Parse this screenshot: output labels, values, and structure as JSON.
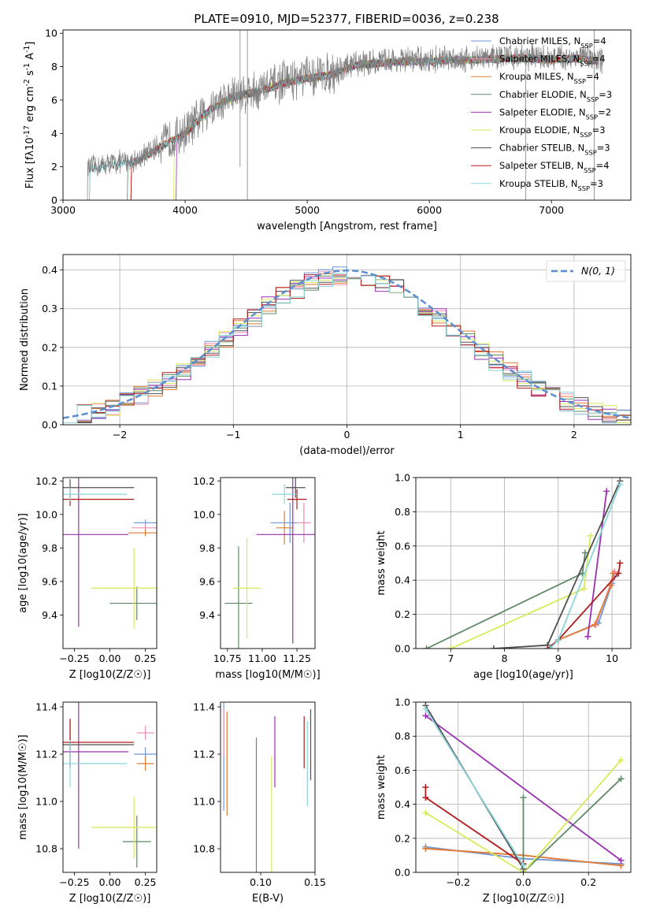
{
  "figure": {
    "title": "PLATE=0910, MJD=52377, FIBERID=0036, z=0.238"
  },
  "series_colors": [
    "#6f98d6",
    "#f08fb0",
    "#e07b33",
    "#5f8a67",
    "#9a2fb0",
    "#d8ea5a",
    "#505050",
    "#b01c1c",
    "#8cd6d9"
  ],
  "chart_data": [
    {
      "type": "line",
      "panel": "spectrum",
      "xlabel": "wavelength [Angstrom, rest frame]",
      "ylabel": "Flux [f_λ10^{-17} erg cm^{-2} s^{-1} A^{-1}]",
      "xlim": [
        3000,
        7650
      ],
      "ylim": [
        0,
        10.2
      ],
      "xticks": [
        3000,
        4000,
        5000,
        6000,
        7000
      ],
      "yticks": [
        0,
        2,
        4,
        6,
        8,
        10
      ],
      "legend": [
        "Chabrier MILES, N_SSP=4",
        "Salpeter MILES, N_SSP=4",
        "Kroupa MILES, N_SSP=4",
        "Chabrier ELODIE, N_SSP=3",
        "Salpeter ELODIE, N_SSP=2",
        "Kroupa ELODIE, N_SSP=3",
        "Chabrier STELIB, N_SSP=3",
        "Salpeter STELIB, N_SSP=4",
        "Kroupa STELIB, N_SSP=3"
      ],
      "legend_loc": "right",
      "data_envelope": {
        "x": [
          3200,
          3400,
          3600,
          3800,
          4000,
          4200,
          4400,
          4600,
          4800,
          5000,
          5200,
          5400,
          5600,
          5800,
          6000,
          6200,
          6400,
          6600,
          6800,
          7000,
          7200,
          7400
        ],
        "y": [
          1.9,
          2.2,
          2.4,
          3.3,
          4.1,
          5.5,
          6.3,
          6.6,
          7.1,
          7.4,
          7.6,
          8.2,
          8.3,
          8.4,
          8.4,
          8.5,
          8.5,
          8.6,
          8.6,
          8.5,
          8.6,
          8.4
        ]
      }
    },
    {
      "type": "line",
      "panel": "residual_hist",
      "xlabel": "(data-model)/error",
      "ylabel": "Normed distribution",
      "xlim": [
        -2.5,
        2.5
      ],
      "ylim": [
        0,
        0.44
      ],
      "xticks": [
        -2,
        -1,
        0,
        1,
        2
      ],
      "yticks": [
        0.0,
        0.1,
        0.2,
        0.3,
        0.4
      ],
      "legend": [
        "N(0, 1)"
      ],
      "legend_loc": "upper right",
      "grid": true
    },
    {
      "type": "scatter",
      "panel": "age_vs_Z",
      "xlabel": "Z [log10(Z/Z☉)]",
      "ylabel": "age [log10(age/yr)]",
      "xlim": [
        -0.33,
        0.33
      ],
      "ylim": [
        9.2,
        10.22
      ],
      "xticks": [
        -0.25,
        0.0,
        0.25
      ],
      "yticks": [
        9.4,
        9.6,
        9.8,
        10.0,
        10.2
      ],
      "points": [
        {
          "x": 0.25,
          "y": 9.95,
          "xerr": 0.08,
          "yerr": 0.02
        },
        {
          "x": 0.25,
          "y": 9.92,
          "xerr": 0.1,
          "yerr": 0.02
        },
        {
          "x": 0.25,
          "y": 9.89,
          "xerr": 0.12,
          "yerr": 0.02
        },
        {
          "x": 0.19,
          "y": 9.47,
          "xerr": 0.19,
          "yerr": 0.1
        },
        {
          "x": -0.22,
          "y": 9.88,
          "xerr": 0.35,
          "yerr": 0.55
        },
        {
          "x": 0.17,
          "y": 9.56,
          "xerr": 0.3,
          "yerr": 0.24
        },
        {
          "x": -0.28,
          "y": 10.16,
          "xerr": 0.45,
          "yerr": 0.05
        },
        {
          "x": -0.28,
          "y": 10.09,
          "xerr": 0.45,
          "yerr": 0.04
        },
        {
          "x": -0.28,
          "y": 10.12,
          "xerr": 0.4,
          "yerr": 0.04
        }
      ]
    },
    {
      "type": "scatter",
      "panel": "age_vs_mass",
      "xlabel": "mass [log10(M/M☉)]",
      "ylabel": "",
      "xlim": [
        10.7,
        11.38
      ],
      "ylim": [
        9.2,
        10.22
      ],
      "xticks": [
        10.75,
        11.0,
        11.25
      ],
      "yticks": [
        9.4,
        9.6,
        9.8,
        10.0,
        10.2
      ],
      "points": [
        {
          "x": 11.2,
          "y": 9.95,
          "xerr": 0.14,
          "yerr": 0.12
        },
        {
          "x": 11.3,
          "y": 9.95,
          "xerr": 0.05,
          "yerr": 0.12
        },
        {
          "x": 11.16,
          "y": 9.92,
          "xerr": 0.06,
          "yerr": 0.1
        },
        {
          "x": 10.83,
          "y": 9.47,
          "xerr": 0.1,
          "yerr": 0.34
        },
        {
          "x": 11.22,
          "y": 9.88,
          "xerr": 0.26,
          "yerr": 0.65
        },
        {
          "x": 10.89,
          "y": 9.56,
          "xerr": 0.1,
          "yerr": 0.3
        },
        {
          "x": 11.24,
          "y": 10.16,
          "xerr": 0.07,
          "yerr": 0.06
        },
        {
          "x": 11.25,
          "y": 10.09,
          "xerr": 0.07,
          "yerr": 0.06
        },
        {
          "x": 11.16,
          "y": 10.12,
          "xerr": 0.09,
          "yerr": 0.06
        }
      ]
    },
    {
      "type": "line",
      "panel": "massweight_vs_age",
      "xlabel": "age [log10(age/yr)]",
      "ylabel": "mass weight",
      "xlim": [
        6.35,
        10.35
      ],
      "ylim": [
        0,
        1.0
      ],
      "xticks": [
        7,
        8,
        9,
        10
      ],
      "yticks": [
        0.0,
        0.2,
        0.4,
        0.6,
        0.8,
        1.0
      ],
      "grid": true,
      "series": [
        {
          "x": [
            9.0,
            9.75,
            10.0,
            10.05
          ],
          "y": [
            0.05,
            0.15,
            0.38,
            0.42
          ]
        },
        {
          "x": [
            9.0,
            9.7,
            10.0,
            10.05
          ],
          "y": [
            0.05,
            0.14,
            0.4,
            0.45
          ]
        },
        {
          "x": [
            9.0,
            9.68,
            9.98,
            10.02
          ],
          "y": [
            0.05,
            0.14,
            0.37,
            0.44
          ]
        },
        {
          "x": [
            6.55,
            9.45,
            9.5
          ],
          "y": [
            0.0,
            0.44,
            0.56
          ]
        },
        {
          "x": [
            9.55,
            9.9
          ],
          "y": [
            0.07,
            0.92
          ]
        },
        {
          "x": [
            7.0,
            9.48,
            9.6
          ],
          "y": [
            0.0,
            0.35,
            0.66
          ]
        },
        {
          "x": [
            7.8,
            8.8,
            10.15
          ],
          "y": [
            0.0,
            0.02,
            0.98
          ]
        },
        {
          "x": [
            8.8,
            9.0,
            10.12,
            10.15
          ],
          "y": [
            0.0,
            0.05,
            0.44,
            0.5
          ]
        },
        {
          "x": [
            8.85,
            9.0,
            10.15
          ],
          "y": [
            0.0,
            0.05,
            0.96
          ]
        }
      ]
    },
    {
      "type": "scatter",
      "panel": "mass_vs_Z",
      "xlabel": "Z [log10(Z/Z☉)]",
      "ylabel": "mass [log10(M/M☉)]",
      "xlim": [
        -0.33,
        0.33
      ],
      "ylim": [
        10.7,
        11.42
      ],
      "xticks": [
        -0.25,
        0.0,
        0.25
      ],
      "yticks": [
        10.8,
        11.0,
        11.2,
        11.4
      ],
      "points": [
        {
          "x": 0.25,
          "y": 11.2,
          "xerr": 0.08,
          "yerr": 0.03
        },
        {
          "x": 0.25,
          "y": 11.29,
          "xerr": 0.06,
          "yerr": 0.03
        },
        {
          "x": 0.25,
          "y": 11.16,
          "xerr": 0.06,
          "yerr": 0.03
        },
        {
          "x": 0.19,
          "y": 10.83,
          "xerr": 0.1,
          "yerr": 0.11
        },
        {
          "x": -0.22,
          "y": 11.21,
          "xerr": 0.35,
          "yerr": 0.41
        },
        {
          "x": 0.17,
          "y": 10.89,
          "xerr": 0.3,
          "yerr": 0.13
        },
        {
          "x": -0.28,
          "y": 11.24,
          "xerr": 0.45,
          "yerr": 0.1
        },
        {
          "x": -0.28,
          "y": 11.25,
          "xerr": 0.45,
          "yerr": 0.1
        },
        {
          "x": -0.28,
          "y": 11.16,
          "xerr": 0.4,
          "yerr": 0.1
        }
      ]
    },
    {
      "type": "scatter",
      "panel": "mass_vs_ebv",
      "xlabel": "E(B-V)",
      "ylabel": "",
      "xlim": [
        0.063,
        0.15
      ],
      "ylim": [
        10.7,
        11.42
      ],
      "xticks": [
        0.1,
        0.15
      ],
      "yticks": [
        10.8,
        11.0,
        11.2,
        11.4
      ],
      "points": [
        {
          "x": 0.066,
          "y": 11.2,
          "yerr": 0.24
        },
        {
          "x": 0.066,
          "y": 11.29,
          "yerr": 0.1
        },
        {
          "x": 0.069,
          "y": 11.16,
          "yerr": 0.22
        },
        {
          "x": 0.096,
          "y": 10.83,
          "yerr": 0.44
        },
        {
          "x": 0.113,
          "y": 11.21,
          "yerr": 0.15
        },
        {
          "x": 0.11,
          "y": 10.89,
          "yerr": 0.3
        },
        {
          "x": 0.146,
          "y": 11.24,
          "yerr": 0.15
        },
        {
          "x": 0.14,
          "y": 11.25,
          "yerr": 0.11
        },
        {
          "x": 0.143,
          "y": 11.16,
          "yerr": 0.18
        }
      ]
    },
    {
      "type": "line",
      "panel": "massweight_vs_Z",
      "xlabel": "Z [log10(Z/Z☉)]",
      "ylabel": "mass weight",
      "xlim": [
        -0.33,
        0.33
      ],
      "ylim": [
        0,
        1.0
      ],
      "xticks": [
        -0.2,
        0.0,
        0.2
      ],
      "yticks": [
        0.0,
        0.2,
        0.4,
        0.6,
        0.8,
        1.0
      ],
      "grid": true,
      "series": [
        {
          "x": [
            -0.3,
            0.0,
            0.3
          ],
          "y": [
            0.15,
            0.08,
            0.05
          ]
        },
        {
          "x": [
            -0.3,
            0.0,
            0.3
          ],
          "y": [
            0.14,
            0.1,
            0.04
          ]
        },
        {
          "x": [
            -0.3,
            0.0,
            0.3
          ],
          "y": [
            0.14,
            0.1,
            0.04
          ]
        },
        {
          "x": [
            0.0,
            0.0,
            0.3
          ],
          "y": [
            0.44,
            0.0,
            0.55
          ]
        },
        {
          "x": [
            -0.3,
            0.3
          ],
          "y": [
            0.92,
            0.07
          ]
        },
        {
          "x": [
            -0.3,
            0.0,
            0.3
          ],
          "y": [
            0.35,
            0.0,
            0.66
          ]
        },
        {
          "x": [
            -0.3,
            0.0
          ],
          "y": [
            0.98,
            0.02
          ]
        },
        {
          "x": [
            -0.3,
            -0.3,
            0.0
          ],
          "y": [
            0.5,
            0.44,
            0.05
          ]
        },
        {
          "x": [
            -0.3,
            0.0
          ],
          "y": [
            0.96,
            0.04
          ]
        }
      ]
    }
  ]
}
